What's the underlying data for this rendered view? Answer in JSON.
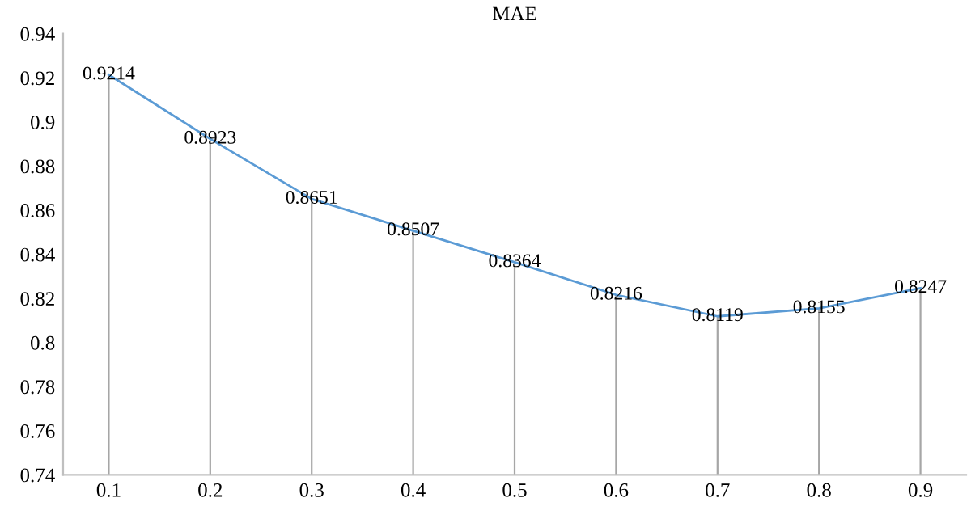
{
  "chart_data": {
    "type": "line",
    "title": "MAE",
    "categories": [
      "0.1",
      "0.2",
      "0.3",
      "0.4",
      "0.5",
      "0.6",
      "0.7",
      "0.8",
      "0.9"
    ],
    "series": [
      {
        "color": "#5b9bd5",
        "values": [
          0.9214,
          0.8923,
          0.8651,
          0.8507,
          0.8364,
          0.8216,
          0.8119,
          0.8155,
          0.8247
        ]
      }
    ],
    "ylim": [
      0.74,
      0.94
    ],
    "yticks": [
      0.74,
      0.76,
      0.78,
      0.8,
      0.82,
      0.84,
      0.86,
      0.88,
      0.9,
      0.92,
      0.94
    ],
    "data_labels": true,
    "grid": "x",
    "line_style": "solid"
  }
}
